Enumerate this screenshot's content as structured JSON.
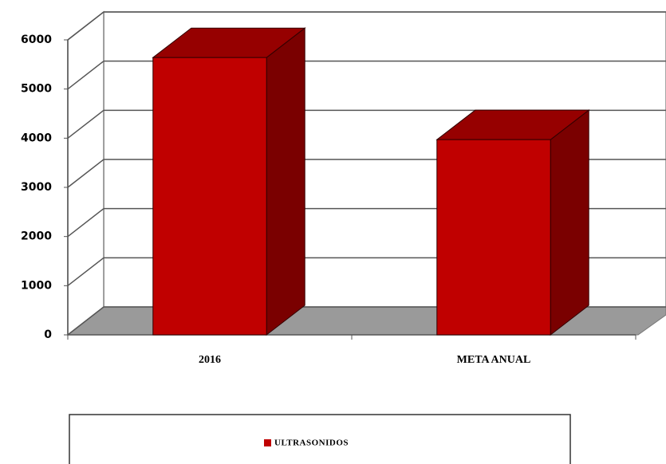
{
  "chart_data": {
    "type": "bar3d",
    "categories": [
      "2016",
      "META ANUAL"
    ],
    "series": [
      {
        "name": "ULTRASONIDOS",
        "color": "#c00000",
        "values": [
          5640,
          3970
        ]
      }
    ],
    "ylim": [
      0,
      6000
    ],
    "yticks": [
      0,
      1000,
      2000,
      3000,
      4000,
      5000,
      6000
    ],
    "grid": true,
    "legend": "bottom"
  }
}
